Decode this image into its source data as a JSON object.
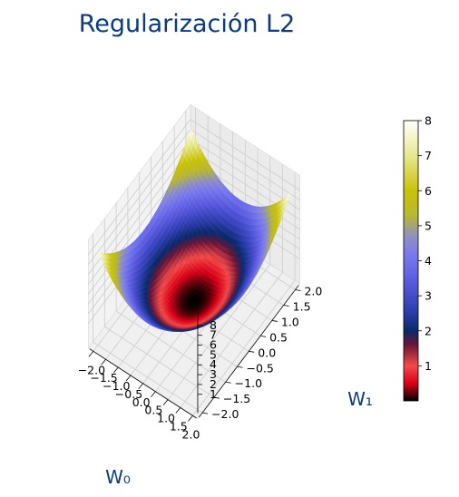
{
  "chart_data": {
    "type": "surface3d",
    "title": "Regularización L2",
    "xlabel": "W₀",
    "ylabel": "W₁",
    "zlabel": "",
    "function": "z = w0^2 + w1^2",
    "x_range": [
      -2,
      2
    ],
    "y_range": [
      -2,
      2
    ],
    "z_range": [
      0,
      8
    ],
    "x_ticks": [
      "−2.0",
      "−1.5",
      "−1.0",
      "−0.5",
      "0.0",
      "0.5",
      "1.0",
      "1.5",
      "2.0"
    ],
    "y_ticks": [
      "−2.0",
      "−1.5",
      "−1.0",
      "−0.5",
      "0.0",
      "0.5",
      "1.0",
      "1.5",
      "2.0"
    ],
    "z_ticks": [
      "1",
      "2",
      "3",
      "4",
      "5",
      "6",
      "7",
      "8"
    ],
    "x_tick_values": [
      -2,
      -1.5,
      -1,
      -0.5,
      0,
      0.5,
      1,
      1.5,
      2
    ],
    "y_tick_values": [
      -2,
      -1.5,
      -1,
      -0.5,
      0,
      0.5,
      1,
      1.5,
      2
    ],
    "z_tick_values": [
      1,
      2,
      3,
      4,
      5,
      6,
      7,
      8
    ],
    "colormap": "gist_stern-like (black → red → navy → blue → yellow → white)",
    "colorbar": {
      "range": [
        0,
        8
      ],
      "ticks": [
        "1",
        "2",
        "3",
        "4",
        "5",
        "6",
        "7",
        "8"
      ],
      "tick_values": [
        1,
        2,
        3,
        4,
        5,
        6,
        7,
        8
      ],
      "stops": [
        {
          "v": 0.0,
          "color": "#000000"
        },
        {
          "v": 0.5,
          "color": "#d80018"
        },
        {
          "v": 1.0,
          "color": "#f24a4a"
        },
        {
          "v": 1.6,
          "color": "#6a1538"
        },
        {
          "v": 2.0,
          "color": "#0a2a6a"
        },
        {
          "v": 2.6,
          "color": "#2f3fb0"
        },
        {
          "v": 3.4,
          "color": "#5a5ae0"
        },
        {
          "v": 4.2,
          "color": "#7a7af0"
        },
        {
          "v": 4.7,
          "color": "#9090c0"
        },
        {
          "v": 5.3,
          "color": "#b8b830"
        },
        {
          "v": 6.0,
          "color": "#c9c20a"
        },
        {
          "v": 7.0,
          "color": "#e8e890"
        },
        {
          "v": 8.0,
          "color": "#ffffff"
        }
      ]
    },
    "colors": {
      "title": "#0b3b7e",
      "axis_label": "#0b3b7e",
      "pane": "#f2f2f2",
      "grid": "#d0d0d0"
    }
  }
}
